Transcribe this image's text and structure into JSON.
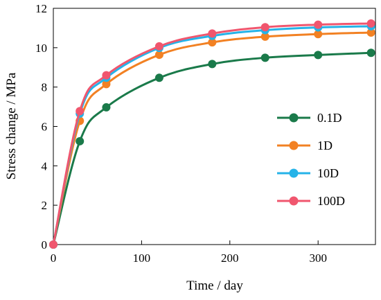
{
  "chart_data": {
    "type": "line",
    "title": "",
    "xlabel": "Time / day",
    "ylabel": "Stress change / MPa",
    "xlim": [
      0,
      365
    ],
    "ylim": [
      0,
      12
    ],
    "x_ticks": [
      0,
      100,
      200,
      300
    ],
    "x_tick_labels": [
      "0",
      "100",
      "200",
      "300"
    ],
    "y_ticks": [
      0,
      2,
      4,
      6,
      8,
      10,
      12
    ],
    "y_tick_labels": [
      "0",
      "2",
      "4",
      "6",
      "8",
      "10",
      "12"
    ],
    "grid": false,
    "legend_position": "center-right",
    "x": [
      0,
      30,
      60,
      120,
      180,
      240,
      300,
      360
    ],
    "series": [
      {
        "name": "0.1D",
        "color": "#1a7a4a",
        "values": [
          0,
          5.25,
          6.97,
          8.47,
          9.17,
          9.49,
          9.63,
          9.74
        ]
      },
      {
        "name": "1D",
        "color": "#f28123",
        "values": [
          0,
          6.28,
          8.15,
          9.64,
          10.27,
          10.56,
          10.69,
          10.77
        ]
      },
      {
        "name": "10D",
        "color": "#25b3e8",
        "values": [
          0,
          6.65,
          8.47,
          9.99,
          10.6,
          10.89,
          11.03,
          11.09
        ]
      },
      {
        "name": "100D",
        "color": "#f0566e",
        "values": [
          0,
          6.78,
          8.6,
          10.07,
          10.72,
          11.04,
          11.17,
          11.23
        ]
      }
    ]
  }
}
